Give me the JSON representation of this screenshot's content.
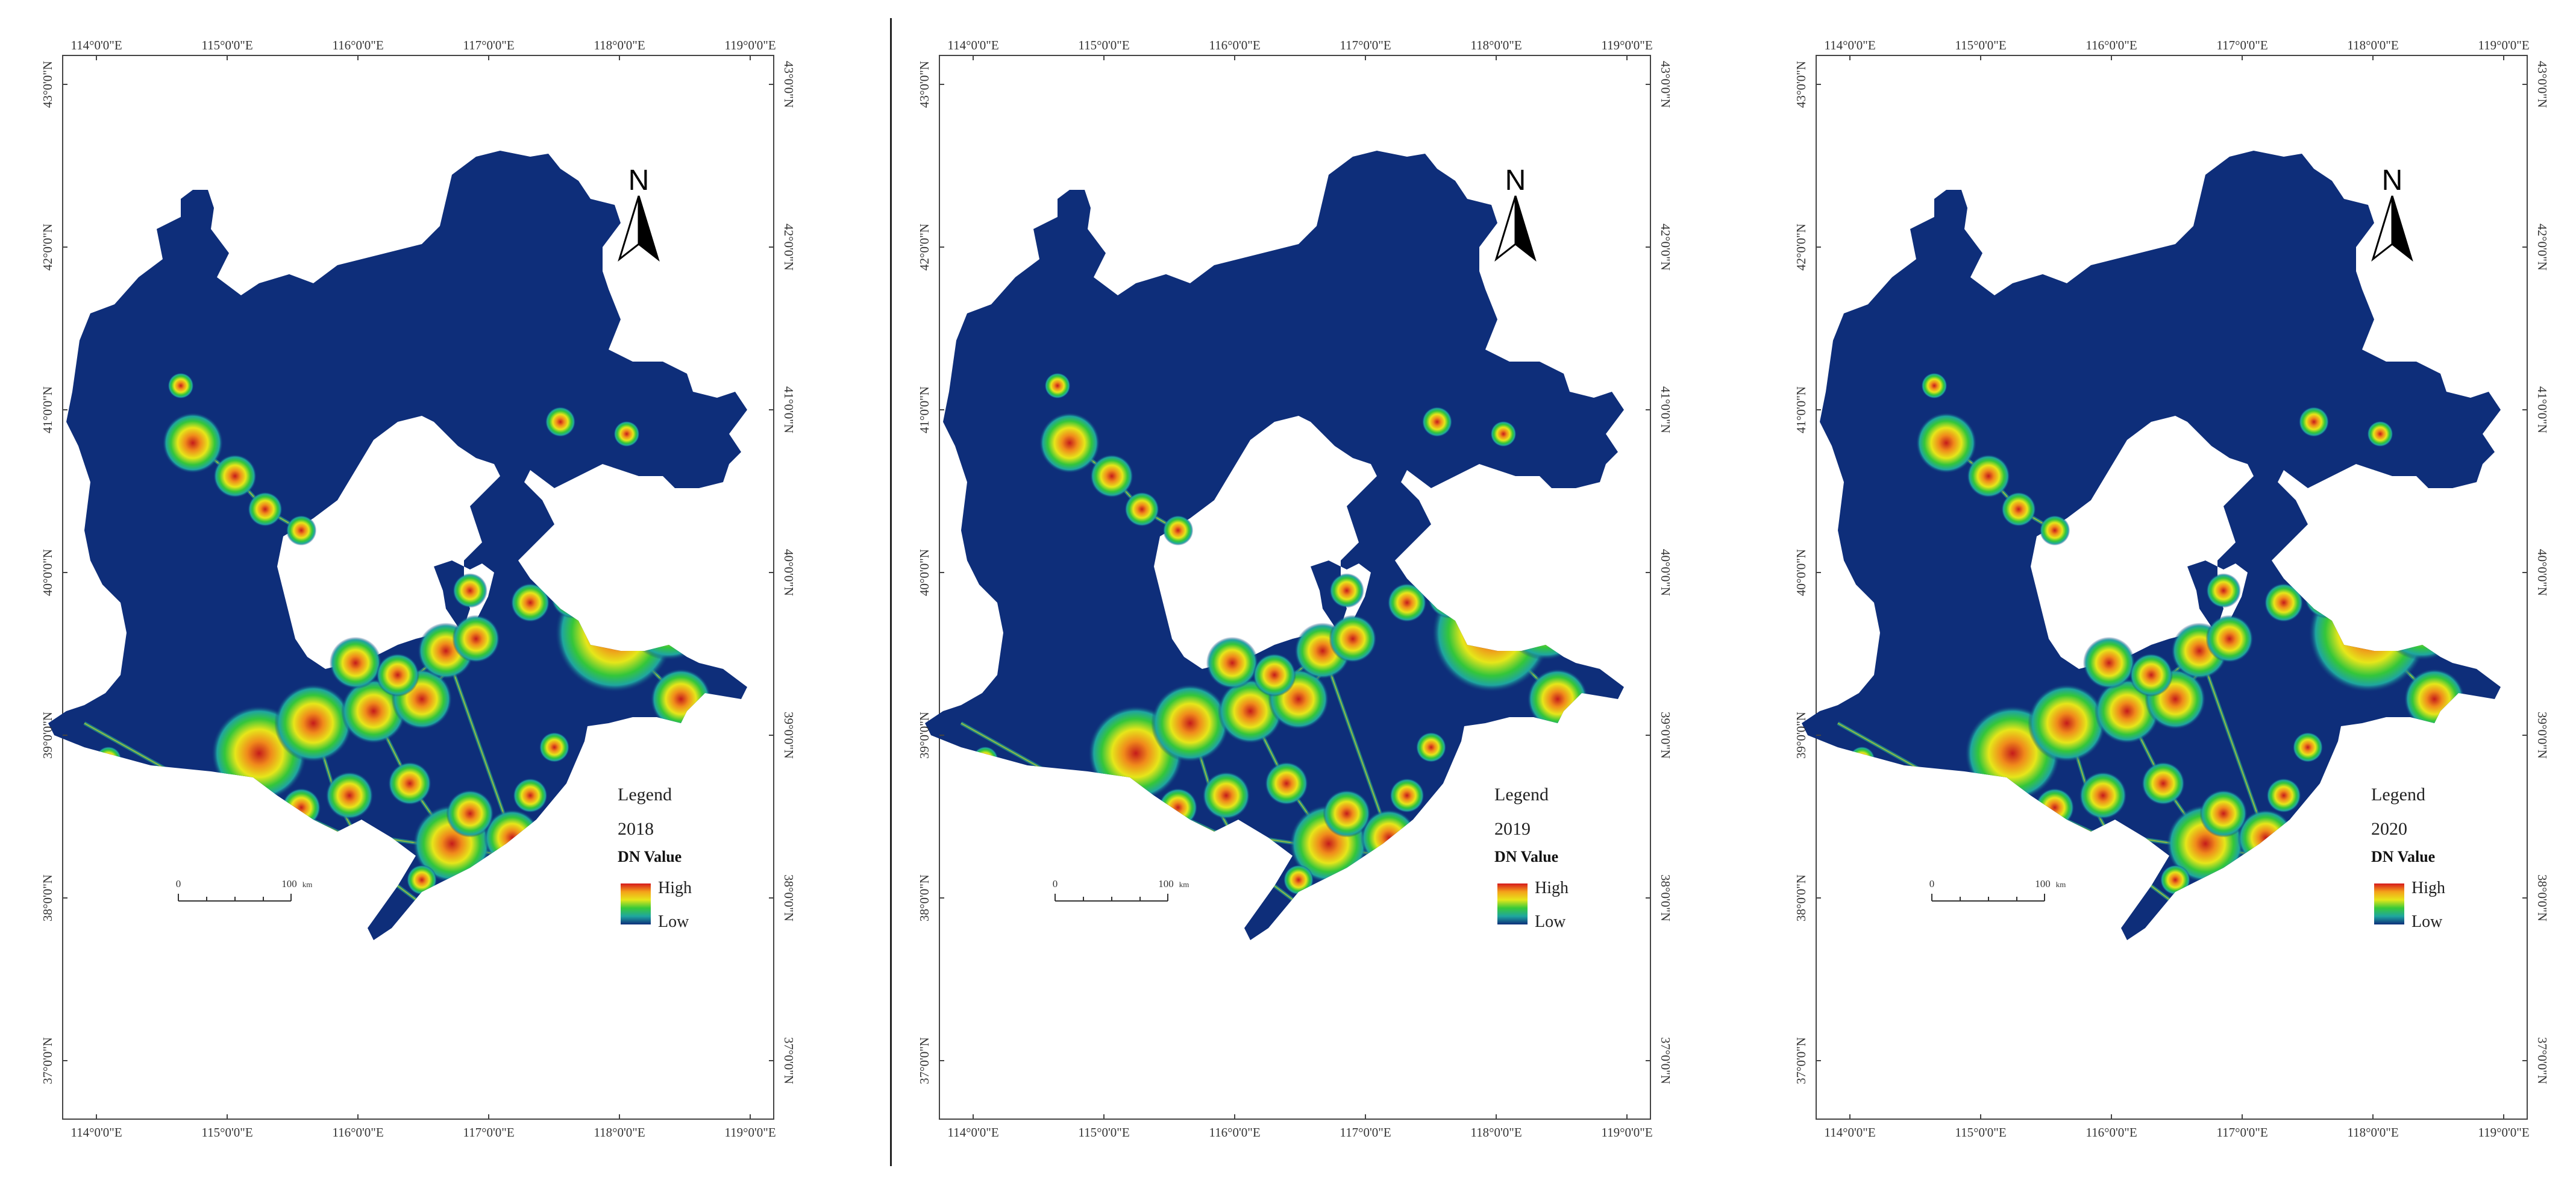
{
  "maps": [
    {
      "legend_title": "Legend",
      "year": "2018",
      "dn_label": "DN Value",
      "high": "High",
      "low": "Low"
    },
    {
      "legend_title": "Legend",
      "year": "2019",
      "dn_label": "DN Value",
      "high": "High",
      "low": "Low"
    },
    {
      "legend_title": "Legend",
      "year": "2020",
      "dn_label": "DN Value",
      "high": "High",
      "low": "Low"
    }
  ],
  "lon_ticks": [
    "114°0'0\"E",
    "115°0'0\"E",
    "116°0'0\"E",
    "117°0'0\"E",
    "118°0'0\"E",
    "119°0'0\"E"
  ],
  "lat_ticks": [
    "43°0'0\"N",
    "42°0'0\"N",
    "41°0'0\"N",
    "40°0'0\"N",
    "39°0'0\"N",
    "38°0'0\"N",
    "37°0'0\"N"
  ],
  "north_arrow": "N",
  "scale_bar": {
    "start": "0",
    "end": "100",
    "unit": "km"
  },
  "colors": {
    "background_low": "#0e2e7a",
    "ramp": [
      "#d7191c",
      "#f4a11a",
      "#e6e61a",
      "#38c93a",
      "#1fa6a0",
      "#0e2e7a"
    ],
    "map_frame": "#444444"
  }
}
